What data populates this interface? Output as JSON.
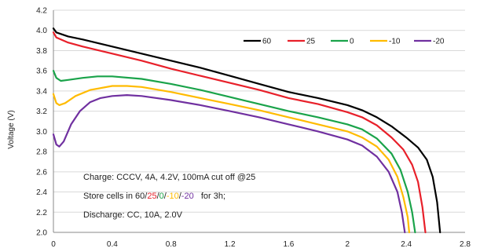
{
  "chart_data": {
    "type": "line",
    "title": "",
    "xlabel": "",
    "ylabel": "Voltage (V)",
    "xlim": [
      0,
      2.8
    ],
    "ylim": [
      2.0,
      4.2
    ],
    "xticks": [
      "0",
      "0.4",
      "0.8",
      "1.2",
      "1.6",
      "2",
      "2.4",
      "2.8"
    ],
    "yticks": [
      "2.0",
      "2.2",
      "2.4",
      "2.6",
      "2.8",
      "3.0",
      "3.2",
      "3.4",
      "3.6",
      "3.8",
      "4.0",
      "4.2"
    ],
    "grid": "horizontal",
    "legend_position": "top-right",
    "series": [
      {
        "name": "60",
        "color": "#000000",
        "points": [
          [
            0,
            4.02
          ],
          [
            0.02,
            3.98
          ],
          [
            0.1,
            3.94
          ],
          [
            0.2,
            3.91
          ],
          [
            0.4,
            3.84
          ],
          [
            0.6,
            3.77
          ],
          [
            0.8,
            3.7
          ],
          [
            1.0,
            3.63
          ],
          [
            1.2,
            3.55
          ],
          [
            1.4,
            3.47
          ],
          [
            1.6,
            3.39
          ],
          [
            1.8,
            3.33
          ],
          [
            2.0,
            3.26
          ],
          [
            2.1,
            3.21
          ],
          [
            2.2,
            3.14
          ],
          [
            2.3,
            3.05
          ],
          [
            2.4,
            2.94
          ],
          [
            2.48,
            2.84
          ],
          [
            2.54,
            2.72
          ],
          [
            2.58,
            2.55
          ],
          [
            2.61,
            2.3
          ],
          [
            2.63,
            2.0
          ]
        ]
      },
      {
        "name": "25",
        "color": "#e8202a",
        "points": [
          [
            0,
            3.98
          ],
          [
            0.02,
            3.93
          ],
          [
            0.1,
            3.88
          ],
          [
            0.2,
            3.84
          ],
          [
            0.4,
            3.77
          ],
          [
            0.6,
            3.7
          ],
          [
            0.8,
            3.62
          ],
          [
            1.0,
            3.55
          ],
          [
            1.2,
            3.48
          ],
          [
            1.4,
            3.41
          ],
          [
            1.6,
            3.33
          ],
          [
            1.8,
            3.27
          ],
          [
            2.0,
            3.19
          ],
          [
            2.1,
            3.14
          ],
          [
            2.2,
            3.06
          ],
          [
            2.3,
            2.94
          ],
          [
            2.38,
            2.82
          ],
          [
            2.44,
            2.67
          ],
          [
            2.48,
            2.5
          ],
          [
            2.51,
            2.25
          ],
          [
            2.53,
            2.0
          ]
        ]
      },
      {
        "name": "0",
        "color": "#1aa34a",
        "points": [
          [
            0,
            3.6
          ],
          [
            0.02,
            3.53
          ],
          [
            0.05,
            3.5
          ],
          [
            0.1,
            3.51
          ],
          [
            0.2,
            3.53
          ],
          [
            0.3,
            3.545
          ],
          [
            0.4,
            3.545
          ],
          [
            0.6,
            3.52
          ],
          [
            0.8,
            3.47
          ],
          [
            1.0,
            3.41
          ],
          [
            1.2,
            3.34
          ],
          [
            1.4,
            3.27
          ],
          [
            1.6,
            3.2
          ],
          [
            1.8,
            3.14
          ],
          [
            2.0,
            3.07
          ],
          [
            2.1,
            3.02
          ],
          [
            2.2,
            2.93
          ],
          [
            2.3,
            2.78
          ],
          [
            2.36,
            2.62
          ],
          [
            2.41,
            2.4
          ],
          [
            2.44,
            2.2
          ],
          [
            2.46,
            2.0
          ]
        ]
      },
      {
        "name": "-10",
        "color": "#ffbb00",
        "points": [
          [
            0,
            3.37
          ],
          [
            0.02,
            3.28
          ],
          [
            0.04,
            3.26
          ],
          [
            0.08,
            3.28
          ],
          [
            0.15,
            3.35
          ],
          [
            0.25,
            3.41
          ],
          [
            0.4,
            3.45
          ],
          [
            0.5,
            3.45
          ],
          [
            0.6,
            3.44
          ],
          [
            0.8,
            3.39
          ],
          [
            1.0,
            3.33
          ],
          [
            1.2,
            3.27
          ],
          [
            1.4,
            3.21
          ],
          [
            1.6,
            3.14
          ],
          [
            1.8,
            3.07
          ],
          [
            2.0,
            3.0
          ],
          [
            2.1,
            2.94
          ],
          [
            2.2,
            2.85
          ],
          [
            2.28,
            2.72
          ],
          [
            2.34,
            2.55
          ],
          [
            2.38,
            2.35
          ],
          [
            2.41,
            2.15
          ],
          [
            2.42,
            2.0
          ]
        ]
      },
      {
        "name": "-20",
        "color": "#7030a0",
        "points": [
          [
            0,
            2.97
          ],
          [
            0.02,
            2.87
          ],
          [
            0.04,
            2.85
          ],
          [
            0.07,
            2.9
          ],
          [
            0.12,
            3.07
          ],
          [
            0.18,
            3.2
          ],
          [
            0.25,
            3.29
          ],
          [
            0.32,
            3.33
          ],
          [
            0.4,
            3.35
          ],
          [
            0.5,
            3.36
          ],
          [
            0.6,
            3.35
          ],
          [
            0.8,
            3.31
          ],
          [
            1.0,
            3.26
          ],
          [
            1.2,
            3.2
          ],
          [
            1.4,
            3.14
          ],
          [
            1.6,
            3.07
          ],
          [
            1.8,
            3.0
          ],
          [
            2.0,
            2.92
          ],
          [
            2.1,
            2.86
          ],
          [
            2.2,
            2.75
          ],
          [
            2.28,
            2.6
          ],
          [
            2.34,
            2.4
          ],
          [
            2.37,
            2.2
          ],
          [
            2.39,
            2.0
          ]
        ]
      }
    ],
    "annotations": {
      "charge": "Charge: CCCV, 4A, 4.2V, 100mA cut off @25",
      "store_prefix": "Store cells in 60/",
      "store_25": "25",
      "store_sep1": "/",
      "store_0": "0",
      "store_sep2": "/",
      "store_m10": "-10",
      "store_sep3": "/",
      "store_m20": "-20",
      "store_suffix": "   for 3h;",
      "discharge": "Discharge: CC, 10A, 2.0V"
    }
  }
}
